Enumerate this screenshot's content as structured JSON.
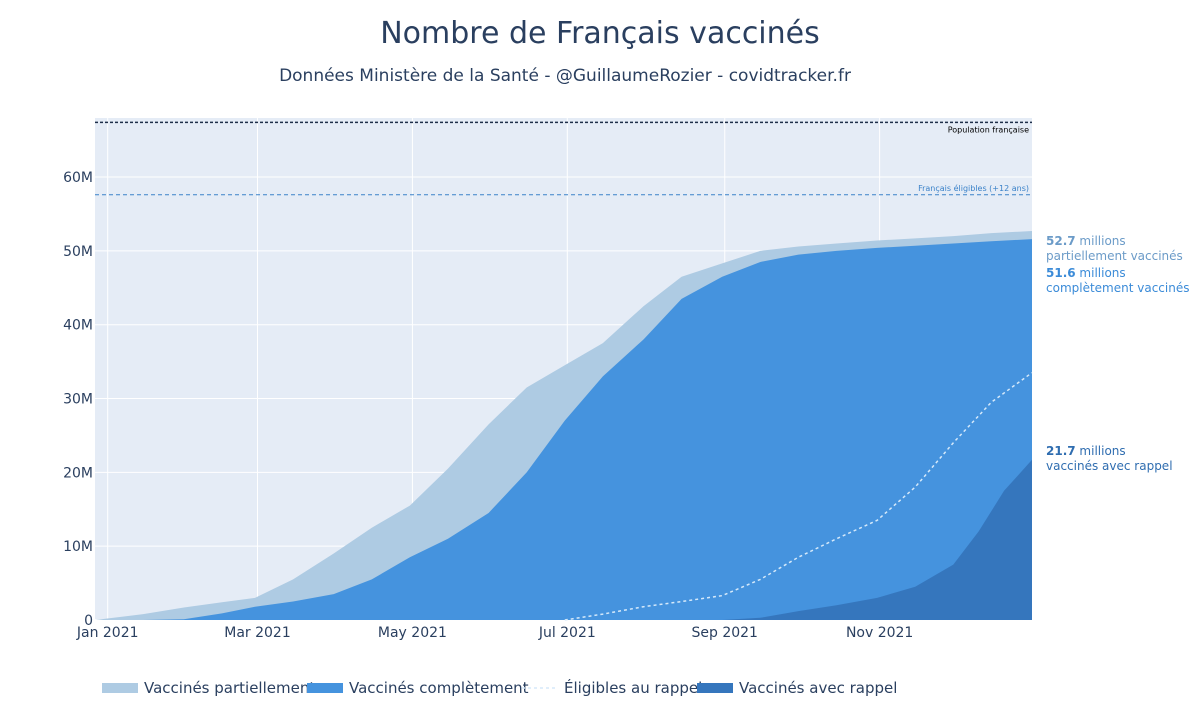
{
  "chart_data": {
    "type": "area",
    "title": "Nombre de Français vaccinés",
    "subtitle": "Données Ministère de la Santé - @GuillaumeRozier - covidtracker.fr",
    "x_ticks": [
      "Jan 2021",
      "Mar 2021",
      "May 2021",
      "Jul 2021",
      "Sep 2021",
      "Nov 2021"
    ],
    "y_ticks": [
      "0",
      "10M",
      "20M",
      "30M",
      "40M",
      "50M",
      "60M"
    ],
    "ylim": [
      0,
      68
    ],
    "xlim": [
      "2020-12-27",
      "2021-12-31"
    ],
    "reference_lines": [
      {
        "label": "Population française",
        "value": 67.4,
        "color": "#1e2f4a"
      },
      {
        "label": "Français éligibles (+12 ans)",
        "value": 57.6,
        "color": "#3b82c9"
      }
    ],
    "series": [
      {
        "name": "Vaccinés partiellement",
        "color": "#aecbe3",
        "x": [
          "2020-12-27",
          "2021-01-15",
          "2021-01-31",
          "2021-02-15",
          "2021-02-28",
          "2021-03-15",
          "2021-03-31",
          "2021-04-15",
          "2021-04-30",
          "2021-05-15",
          "2021-05-31",
          "2021-06-15",
          "2021-06-30",
          "2021-07-15",
          "2021-07-31",
          "2021-08-15",
          "2021-08-31",
          "2021-09-15",
          "2021-09-30",
          "2021-10-15",
          "2021-10-31",
          "2021-11-15",
          "2021-11-30",
          "2021-12-15",
          "2021-12-31"
        ],
        "values": [
          0,
          0.8,
          1.7,
          2.4,
          3.0,
          5.5,
          9.0,
          12.5,
          15.5,
          20.5,
          26.5,
          31.5,
          34.5,
          37.5,
          42.5,
          46.5,
          48.3,
          50.0,
          50.6,
          51.0,
          51.4,
          51.7,
          52.0,
          52.4,
          52.7
        ]
      },
      {
        "name": "Vaccinés complètement",
        "color": "#4593de",
        "x": [
          "2020-12-27",
          "2021-01-15",
          "2021-01-31",
          "2021-02-15",
          "2021-02-28",
          "2021-03-15",
          "2021-03-31",
          "2021-04-15",
          "2021-04-30",
          "2021-05-15",
          "2021-05-31",
          "2021-06-15",
          "2021-06-30",
          "2021-07-15",
          "2021-07-31",
          "2021-08-15",
          "2021-08-31",
          "2021-09-15",
          "2021-09-30",
          "2021-10-15",
          "2021-10-31",
          "2021-11-15",
          "2021-11-30",
          "2021-12-15",
          "2021-12-31"
        ],
        "values": [
          0,
          0,
          0.1,
          0.9,
          1.8,
          2.5,
          3.5,
          5.5,
          8.5,
          11.0,
          14.5,
          20.0,
          27.0,
          33.0,
          38.0,
          43.5,
          46.5,
          48.5,
          49.5,
          50.0,
          50.4,
          50.7,
          51.0,
          51.3,
          51.6
        ]
      },
      {
        "name": "Éligibles au rappel",
        "color": "#d5e9fa",
        "style": "dashed-line",
        "x": [
          "2021-06-30",
          "2021-07-15",
          "2021-07-31",
          "2021-08-15",
          "2021-08-31",
          "2021-09-15",
          "2021-09-30",
          "2021-10-15",
          "2021-10-31",
          "2021-11-15",
          "2021-11-30",
          "2021-12-15",
          "2021-12-31"
        ],
        "values": [
          0,
          0.8,
          1.8,
          2.5,
          3.3,
          5.5,
          8.5,
          11.0,
          13.5,
          18.0,
          24.0,
          29.5,
          33.5
        ]
      },
      {
        "name": "Vaccinés avec rappel",
        "color": "#3576bd",
        "x": [
          "2020-12-27",
          "2021-08-31",
          "2021-09-15",
          "2021-09-30",
          "2021-10-15",
          "2021-10-31",
          "2021-11-15",
          "2021-11-30",
          "2021-12-10",
          "2021-12-20",
          "2021-12-31"
        ],
        "values": [
          0,
          0,
          0.3,
          1.2,
          2.0,
          3.0,
          4.5,
          7.5,
          12.0,
          17.5,
          21.7
        ]
      }
    ],
    "annotations": [
      {
        "value": "52.7",
        "text": "millions",
        "text2": "partiellement vaccinés",
        "color": "#6b9bc8"
      },
      {
        "value": "51.6",
        "text": "millions",
        "text2": "complètement vaccinés",
        "color": "#3b8bd8"
      },
      {
        "value": "21.7",
        "text": "millions",
        "text2": "vaccinés avec rappel",
        "color": "#2f6db0"
      }
    ],
    "legend_position": "bottom",
    "plot_background": "#e5ecf6",
    "grid": true
  }
}
